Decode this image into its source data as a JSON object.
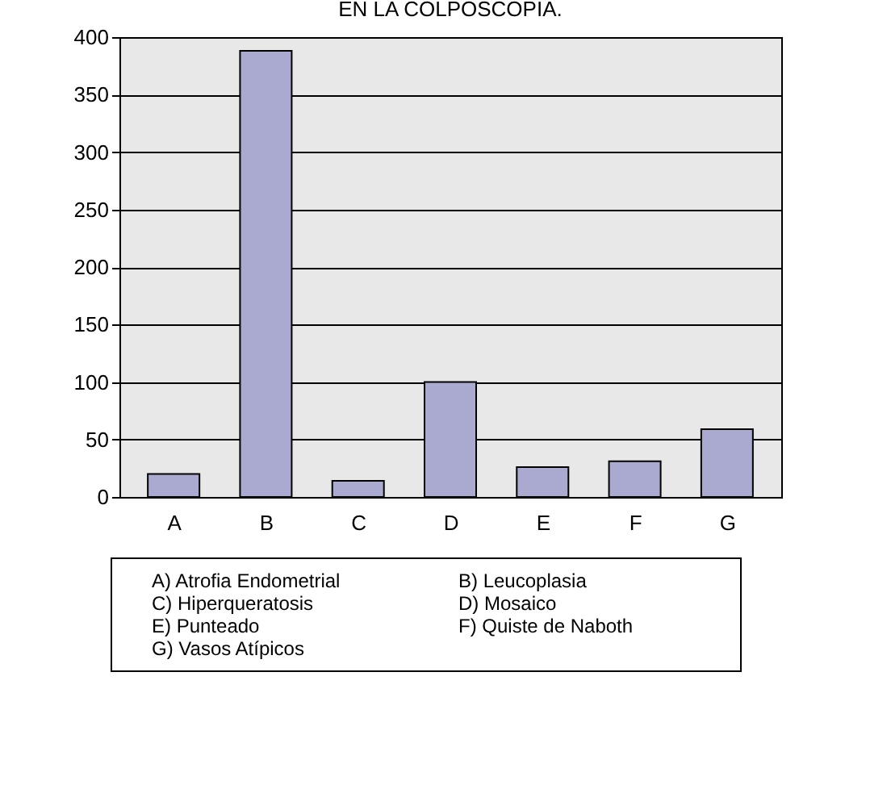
{
  "chart_data": {
    "type": "bar",
    "title": "EN LA COLPOSCOPIA.",
    "categories": [
      "A",
      "B",
      "C",
      "D",
      "E",
      "F",
      "G"
    ],
    "values": [
      20,
      388,
      14,
      100,
      26,
      31,
      59
    ],
    "color": "#aaaad0",
    "ylim": [
      0,
      400
    ],
    "yticks": [
      0,
      50,
      100,
      150,
      200,
      250,
      300,
      350,
      400
    ],
    "grid": "y",
    "annotations": [
      "A) Atrofia Endometrial",
      "B) Leucoplasia",
      "C) Hiperqueratosis",
      "D) Mosaico",
      "E) Punteado",
      "F) Quiste de Naboth",
      "G) Vasos Atípicos"
    ]
  }
}
